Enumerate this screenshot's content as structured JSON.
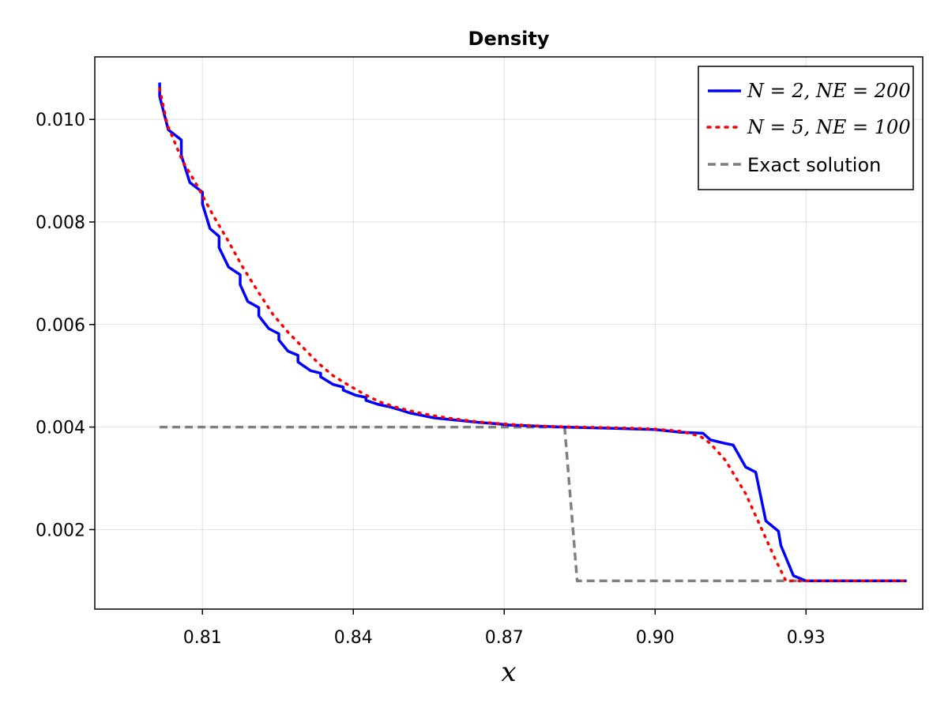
{
  "chart_data": {
    "type": "line",
    "title": "Density",
    "xlabel": "x",
    "ylabel": "",
    "xlim": [
      0.7886,
      0.9532
    ],
    "ylim": [
      0.00045,
      0.01122
    ],
    "xticks": [
      0.81,
      0.84,
      0.87,
      0.9,
      0.93
    ],
    "xtick_labels": [
      "0.81",
      "0.84",
      "0.87",
      "0.90",
      "0.93"
    ],
    "yticks": [
      0.002,
      0.004,
      0.006,
      0.008,
      0.01
    ],
    "ytick_labels": [
      "0.002",
      "0.004",
      "0.006",
      "0.008",
      "0.010"
    ],
    "grid": true,
    "legend_position": "top-right",
    "series": [
      {
        "name": "N = 2, NE = 200",
        "color": "#0000ff",
        "style": "solid",
        "x": [
          0.8015,
          0.8015,
          0.8032,
          0.8058,
          0.8058,
          0.8075,
          0.81,
          0.81,
          0.8115,
          0.8133,
          0.8133,
          0.8152,
          0.8175,
          0.8175,
          0.819,
          0.8212,
          0.8212,
          0.8232,
          0.8252,
          0.8252,
          0.827,
          0.829,
          0.829,
          0.8315,
          0.8335,
          0.8335,
          0.836,
          0.838,
          0.838,
          0.8405,
          0.8425,
          0.8425,
          0.845,
          0.847,
          0.8495,
          0.851,
          0.854,
          0.856,
          0.859,
          0.862,
          0.865,
          0.868,
          0.871,
          0.876,
          0.882,
          0.89,
          0.9,
          0.905,
          0.9095,
          0.911,
          0.914,
          0.9155,
          0.918,
          0.92,
          0.922,
          0.9245,
          0.925,
          0.9275,
          0.93,
          0.935,
          0.95
        ],
        "y": [
          0.01072,
          0.01045,
          0.0098,
          0.0096,
          0.0093,
          0.00877,
          0.00858,
          0.00835,
          0.00787,
          0.00772,
          0.0075,
          0.00712,
          0.00697,
          0.00678,
          0.00645,
          0.00633,
          0.00617,
          0.00592,
          0.00582,
          0.0057,
          0.00548,
          0.0054,
          0.00527,
          0.0051,
          0.00505,
          0.00498,
          0.00483,
          0.00478,
          0.00472,
          0.00462,
          0.00458,
          0.00452,
          0.00444,
          0.0044,
          0.00433,
          0.00428,
          0.00422,
          0.00418,
          0.00415,
          0.00412,
          0.00409,
          0.00407,
          0.00404,
          0.00402,
          0.004,
          0.00398,
          0.00395,
          0.0039,
          0.00388,
          0.00375,
          0.00368,
          0.00365,
          0.00322,
          0.00312,
          0.00217,
          0.00197,
          0.00169,
          0.0011,
          0.001,
          0.001,
          0.001
        ]
      },
      {
        "name": "N = 5, NE = 100",
        "color": "#ff0000",
        "style": "dotted",
        "x": [
          0.8015,
          0.803,
          0.806,
          0.809,
          0.812,
          0.815,
          0.818,
          0.821,
          0.824,
          0.827,
          0.83,
          0.833,
          0.836,
          0.839,
          0.842,
          0.845,
          0.848,
          0.852,
          0.856,
          0.86,
          0.865,
          0.87,
          0.875,
          0.88,
          0.885,
          0.89,
          0.895,
          0.9,
          0.905,
          0.909,
          0.911,
          0.914,
          0.918,
          0.921,
          0.924,
          0.926,
          0.93,
          0.95
        ],
        "y": [
          0.0106,
          0.0099,
          0.0092,
          0.0087,
          0.00815,
          0.00765,
          0.00712,
          0.00665,
          0.0062,
          0.00585,
          0.00555,
          0.00525,
          0.005,
          0.00482,
          0.00465,
          0.0045,
          0.0044,
          0.0043,
          0.00422,
          0.00416,
          0.0041,
          0.00406,
          0.00403,
          0.00401,
          0.004,
          0.00399,
          0.00398,
          0.00396,
          0.00392,
          0.00382,
          0.00368,
          0.00335,
          0.0027,
          0.00205,
          0.0014,
          0.001,
          0.001,
          0.001
        ]
      },
      {
        "name": "Exact solution",
        "color": "#808080",
        "style": "dashed",
        "x": [
          0.8015,
          0.882,
          0.8845,
          0.95
        ],
        "y": [
          0.004,
          0.004,
          0.001,
          0.001
        ]
      }
    ],
    "legend": {
      "entries": [
        {
          "label": "N = 2, NE = 200",
          "math": true
        },
        {
          "label": "N = 5, NE = 100",
          "math": true
        },
        {
          "label": "Exact solution",
          "math": false
        }
      ]
    }
  }
}
